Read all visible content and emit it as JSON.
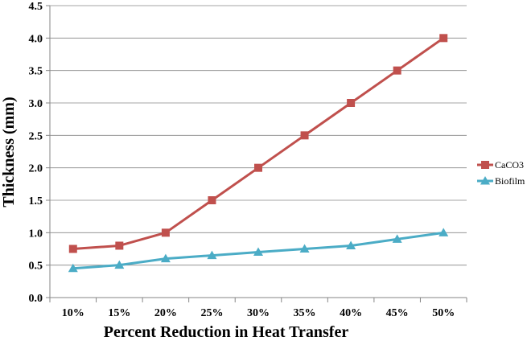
{
  "chart_data": {
    "type": "line",
    "title": "",
    "xlabel": "Percent Reduction in Heat Transfer",
    "ylabel": "Thickness (mm)",
    "categories": [
      "10%",
      "15%",
      "20%",
      "25%",
      "30%",
      "35%",
      "40%",
      "45%",
      "50%"
    ],
    "yticks": [
      "0.0",
      "0.5",
      "1.0",
      "1.5",
      "2.0",
      "2.5",
      "3.0",
      "3.5",
      "4.0",
      "4.5"
    ],
    "ylim": [
      0,
      4.5
    ],
    "ystep": 0.5,
    "grid": true,
    "legend_position": "right",
    "series": [
      {
        "name": "CaCO3",
        "marker": "square",
        "color": "#C0504D",
        "values": [
          0.75,
          0.8,
          1.0,
          1.5,
          2.0,
          2.5,
          3.0,
          3.5,
          4.0
        ]
      },
      {
        "name": "Biofilm",
        "marker": "triangle",
        "color": "#4BACC6",
        "values": [
          0.45,
          0.5,
          0.6,
          0.65,
          0.7,
          0.75,
          0.8,
          0.9,
          1.0
        ]
      }
    ]
  }
}
